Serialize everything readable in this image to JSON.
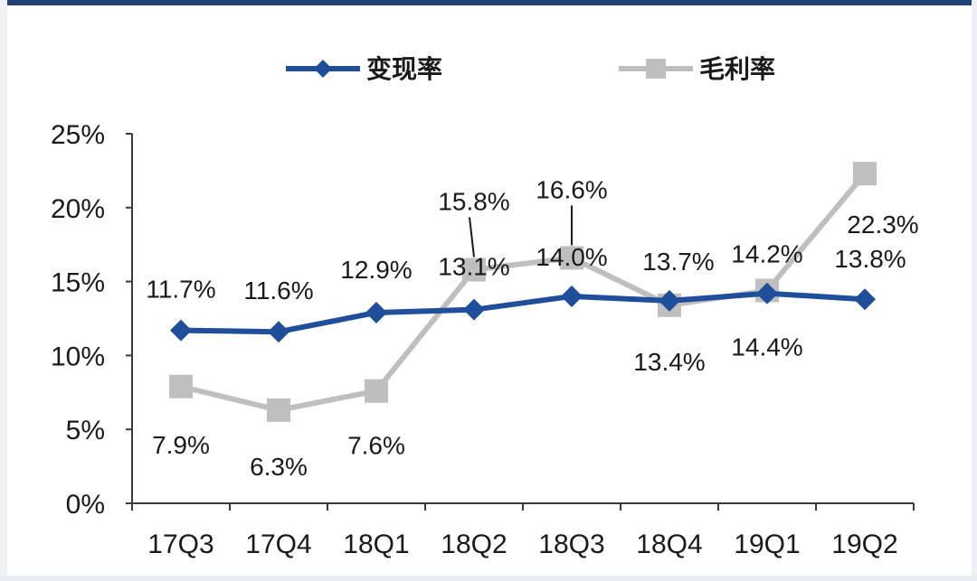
{
  "chart_data": {
    "type": "line",
    "categories": [
      "17Q3",
      "17Q4",
      "18Q1",
      "18Q2",
      "18Q3",
      "18Q4",
      "19Q1",
      "19Q2"
    ],
    "series": [
      {
        "name": "变现率",
        "color": "#1f4e9a",
        "marker": "diamond",
        "values": [
          11.7,
          11.6,
          12.9,
          13.1,
          14.0,
          13.7,
          14.2,
          13.8
        ],
        "labels": [
          "11.7%",
          "11.6%",
          "12.9%",
          "13.1%",
          "14.0%",
          "13.7%",
          "14.2%",
          "13.8%"
        ]
      },
      {
        "name": "毛利率",
        "color": "#bfbfbf",
        "marker": "square",
        "values": [
          7.9,
          6.3,
          7.6,
          15.8,
          16.6,
          13.4,
          14.4,
          22.3
        ],
        "labels": [
          "7.9%",
          "6.3%",
          "7.6%",
          "15.8%",
          "16.6%",
          "13.4%",
          "14.4%",
          "22.3%"
        ]
      }
    ],
    "y_ticks": [
      "0%",
      "5%",
      "10%",
      "15%",
      "20%",
      "25%"
    ],
    "ylim": [
      0,
      25
    ],
    "grid": false,
    "legend_position": "top"
  }
}
